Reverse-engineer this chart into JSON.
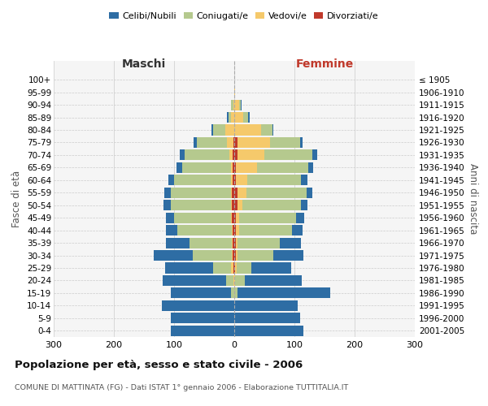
{
  "age_groups": [
    "0-4",
    "5-9",
    "10-14",
    "15-19",
    "20-24",
    "25-29",
    "30-34",
    "35-39",
    "40-44",
    "45-49",
    "50-54",
    "55-59",
    "60-64",
    "65-69",
    "70-74",
    "75-79",
    "80-84",
    "85-89",
    "90-94",
    "95-99",
    "100+"
  ],
  "birth_years": [
    "2001-2005",
    "1996-2000",
    "1991-1995",
    "1986-1990",
    "1981-1985",
    "1976-1980",
    "1971-1975",
    "1966-1970",
    "1961-1965",
    "1956-1960",
    "1951-1955",
    "1946-1950",
    "1941-1945",
    "1936-1940",
    "1931-1935",
    "1926-1930",
    "1921-1925",
    "1916-1920",
    "1911-1915",
    "1906-1910",
    "≤ 1905"
  ],
  "males": {
    "celibi": [
      105,
      105,
      120,
      100,
      105,
      80,
      65,
      40,
      20,
      13,
      12,
      10,
      10,
      10,
      8,
      5,
      3,
      2,
      1,
      0,
      0
    ],
    "coniugati": [
      0,
      0,
      0,
      5,
      12,
      30,
      65,
      70,
      90,
      95,
      100,
      100,
      95,
      80,
      75,
      50,
      20,
      5,
      3,
      0,
      0
    ],
    "vedovi": [
      0,
      0,
      0,
      0,
      2,
      3,
      1,
      1,
      1,
      1,
      1,
      2,
      2,
      3,
      5,
      10,
      15,
      5,
      2,
      0,
      0
    ],
    "divorziati": [
      0,
      0,
      0,
      0,
      0,
      2,
      3,
      3,
      3,
      4,
      4,
      4,
      3,
      3,
      3,
      2,
      0,
      0,
      0,
      0,
      0
    ]
  },
  "females": {
    "nubili": [
      115,
      110,
      105,
      155,
      95,
      65,
      50,
      35,
      18,
      13,
      10,
      10,
      10,
      8,
      8,
      3,
      2,
      2,
      1,
      0,
      0
    ],
    "coniugate": [
      0,
      0,
      0,
      5,
      15,
      25,
      60,
      70,
      88,
      95,
      98,
      100,
      90,
      85,
      80,
      50,
      18,
      8,
      3,
      0,
      0
    ],
    "vedove": [
      0,
      0,
      0,
      0,
      2,
      2,
      2,
      3,
      5,
      5,
      8,
      15,
      18,
      35,
      45,
      55,
      45,
      15,
      8,
      1,
      0
    ],
    "divorziate": [
      0,
      0,
      0,
      0,
      0,
      2,
      3,
      3,
      3,
      3,
      5,
      5,
      3,
      3,
      5,
      5,
      0,
      0,
      0,
      0,
      0
    ]
  },
  "colors": {
    "celibi": "#2E6DA4",
    "coniugati": "#B5C98E",
    "vedovi": "#F5C96B",
    "divorziati": "#C0392B"
  },
  "xlim": 300,
  "title": "Popolazione per età, sesso e stato civile - 2006",
  "subtitle": "COMUNE DI MATTINATA (FG) - Dati ISTAT 1° gennaio 2006 - Elaborazione TUTTITALIA.IT",
  "ylabel_left": "Fasce di età",
  "ylabel_right": "Anni di nascita",
  "xlabel_left": "Maschi",
  "xlabel_right": "Femmine"
}
